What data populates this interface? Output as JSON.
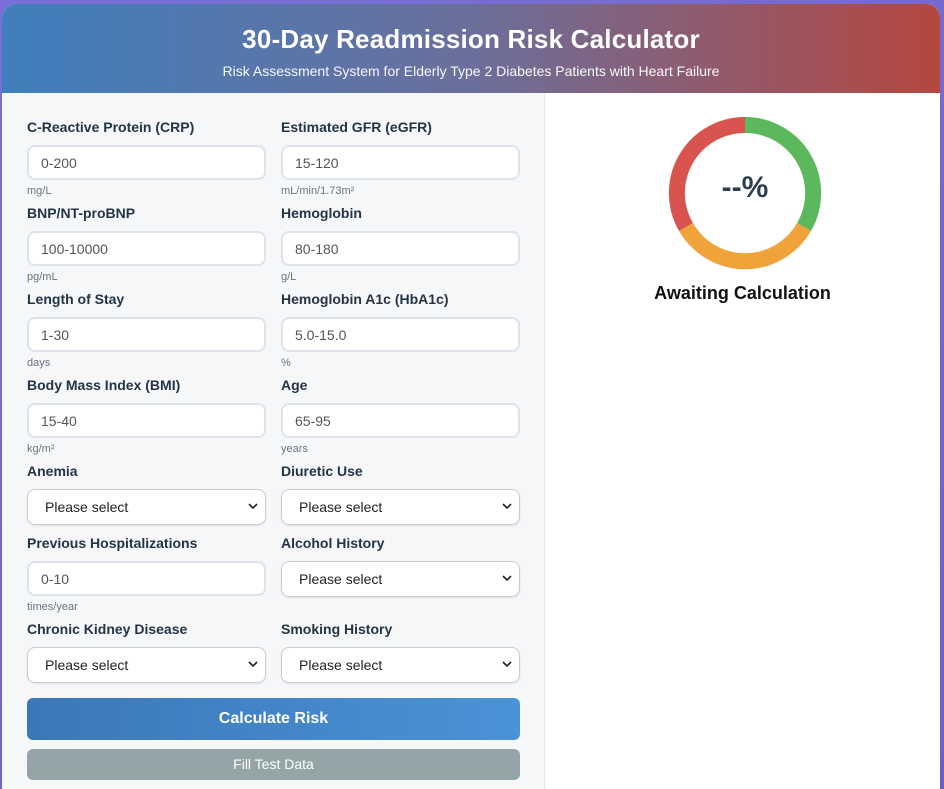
{
  "header": {
    "title": "30-Day Readmission Risk Calculator",
    "subtitle": "Risk Assessment System for Elderly Type 2 Diabetes Patients with Heart Failure"
  },
  "fields": {
    "crp": {
      "label": "C-Reactive Protein (CRP)",
      "placeholder": "0-200",
      "unit": "mg/L"
    },
    "egfr": {
      "label": "Estimated GFR (eGFR)",
      "placeholder": "15-120",
      "unit": "mL/min/1.73m²"
    },
    "bnp": {
      "label": "BNP/NT-proBNP",
      "placeholder": "100-10000",
      "unit": "pg/mL"
    },
    "hemoglobin": {
      "label": "Hemoglobin",
      "placeholder": "80-180",
      "unit": "g/L"
    },
    "los": {
      "label": "Length of Stay",
      "placeholder": "1-30",
      "unit": "days"
    },
    "hba1c": {
      "label": "Hemoglobin A1c (HbA1c)",
      "placeholder": "5.0-15.0",
      "unit": "%"
    },
    "bmi": {
      "label": "Body Mass Index (BMI)",
      "placeholder": "15-40",
      "unit": "kg/m²"
    },
    "age": {
      "label": "Age",
      "placeholder": "65-95",
      "unit": "years"
    },
    "anemia": {
      "label": "Anemia",
      "value": "Please select"
    },
    "diuretic": {
      "label": "Diuretic Use",
      "value": "Please select"
    },
    "prev_hosp": {
      "label": "Previous Hospitalizations",
      "placeholder": "0-10",
      "unit": "times/year"
    },
    "alcohol": {
      "label": "Alcohol History",
      "value": "Please select"
    },
    "ckd": {
      "label": "Chronic Kidney Disease",
      "value": "Please select"
    },
    "smoking": {
      "label": "Smoking History",
      "value": "Please select"
    }
  },
  "buttons": {
    "calculate": "Calculate Risk",
    "fill_test": "Fill Test Data"
  },
  "result": {
    "value": "--%",
    "status": "Awaiting Calculation",
    "colors": {
      "low": "#5cb85c",
      "medium": "#f0a33a",
      "high": "#d9534f"
    }
  }
}
